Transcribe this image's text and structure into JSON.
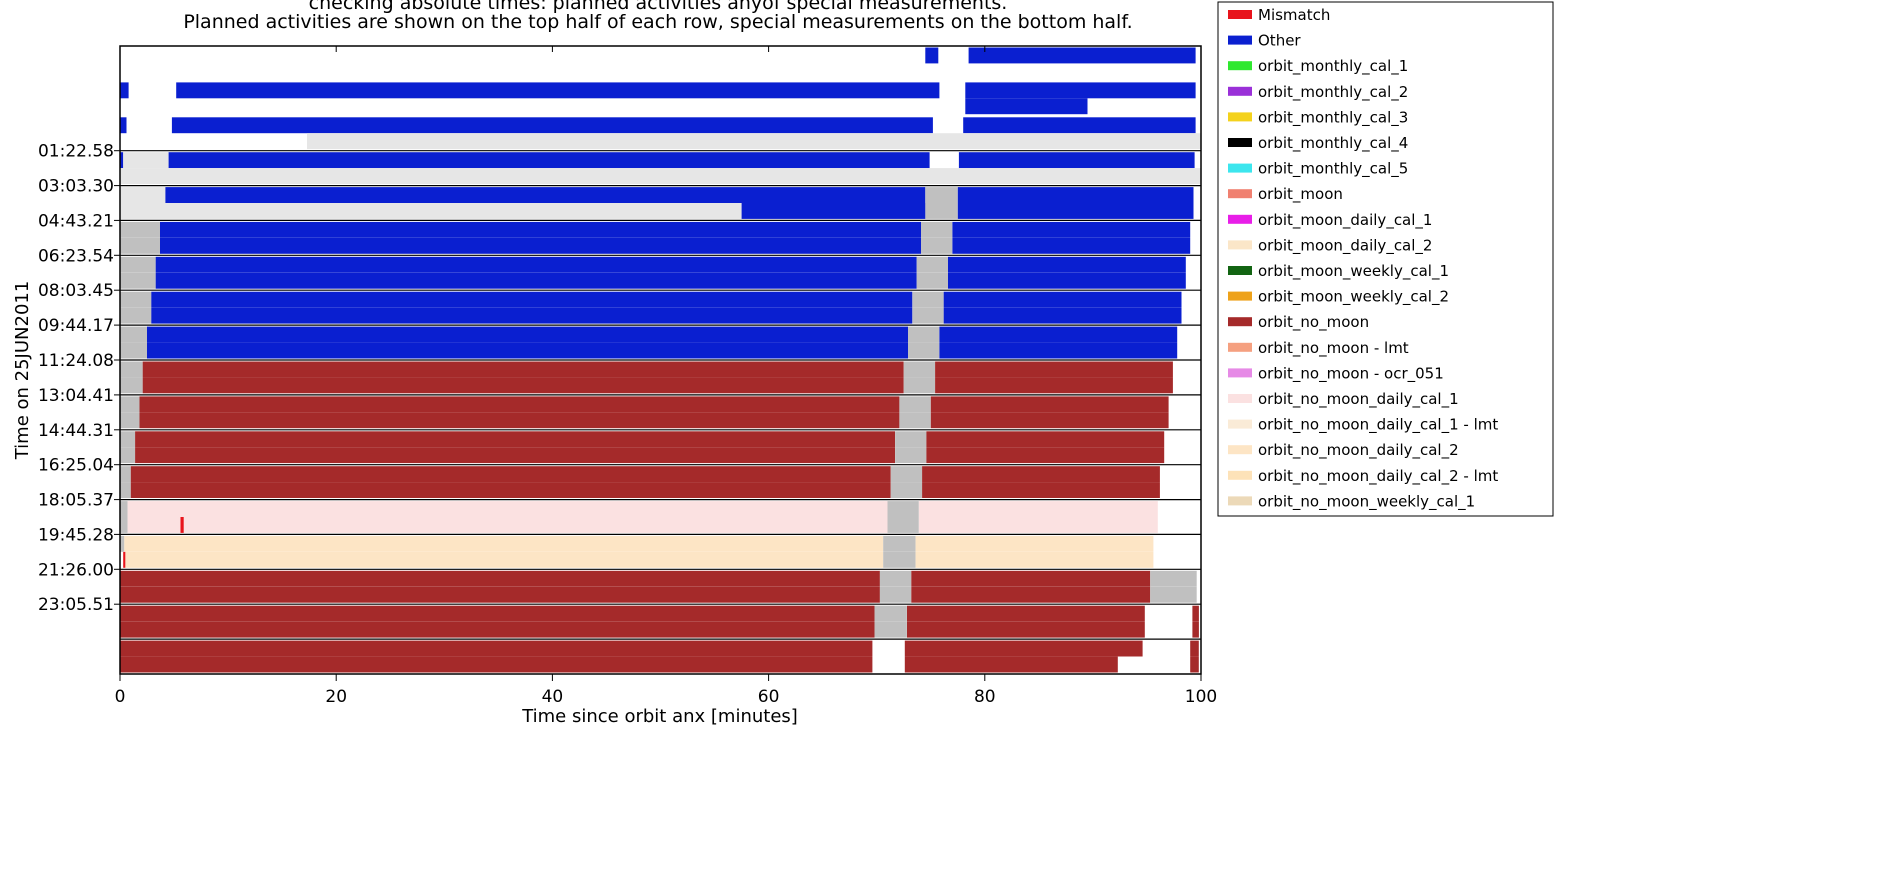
{
  "chart_data": {
    "type": "timeline",
    "subtitle_clipped": "checking absolute times: planned activities anyof special measurements.",
    "subtitle": "Planned activities are shown on the top half of each row, special measurements on the bottom half.",
    "xlabel": "Time since orbit anx [minutes]",
    "ylabel": "Time on 25JUN2011",
    "xlim": [
      0,
      100
    ],
    "x_ticks": [
      0,
      20,
      40,
      60,
      80,
      100
    ],
    "y_tick_labels": [
      "01:22.58",
      "03:03.30",
      "04:43.21",
      "06:23.54",
      "08:03.45",
      "09:44.17",
      "11:24.08",
      "13:04.41",
      "14:44.31",
      "16:25.04",
      "18:05.37",
      "19:45.28",
      "21:26.00",
      "23:05.51"
    ],
    "legend": [
      {
        "label": "Mismatch",
        "color": "#e8141c"
      },
      {
        "label": "Other",
        "color": "#0a1fd0"
      },
      {
        "label": "orbit_monthly_cal_1",
        "color": "#2fe82f"
      },
      {
        "label": "orbit_monthly_cal_2",
        "color": "#9a30d8"
      },
      {
        "label": "orbit_monthly_cal_3",
        "color": "#f4d21c"
      },
      {
        "label": "orbit_monthly_cal_4",
        "color": "#000000"
      },
      {
        "label": "orbit_monthly_cal_5",
        "color": "#3ce6ee"
      },
      {
        "label": "orbit_moon",
        "color": "#f08070"
      },
      {
        "label": "orbit_moon_daily_cal_1",
        "color": "#e81ee8"
      },
      {
        "label": "orbit_moon_daily_cal_2",
        "color": "#fbe6c8"
      },
      {
        "label": "orbit_moon_weekly_cal_1",
        "color": "#126412"
      },
      {
        "label": "orbit_moon_weekly_cal_2",
        "color": "#eea21a"
      },
      {
        "label": "orbit_no_moon",
        "color": "#a52a2a"
      },
      {
        "label": "orbit_no_moon - lmt",
        "color": "#f5a080"
      },
      {
        "label": "orbit_no_moon - ocr_051",
        "color": "#e68ae6"
      },
      {
        "label": "orbit_no_moon_daily_cal_1",
        "color": "#fbe1e1"
      },
      {
        "label": "orbit_no_moon_daily_cal_1 - lmt",
        "color": "#faebd7"
      },
      {
        "label": "orbit_no_moon_daily_cal_2",
        "color": "#fde5c5"
      },
      {
        "label": "orbit_no_moon_daily_cal_2 - lmt",
        "color": "#fde2b8"
      },
      {
        "label": "orbit_no_moon_weekly_cal_1",
        "color": "#ecd9b8"
      }
    ],
    "colors": {
      "Other": "#0a1fd0",
      "orbit_no_moon": "#a52a2a",
      "orbit_no_moon_daily_cal_1": "#fbe1e1",
      "orbit_no_moon_daily_cal_2": "#fde5c5",
      "Mismatch": "#e8141c",
      "gap_gray": "#c0c0c0",
      "light_gray": "#e6e6e6"
    },
    "rows": [
      {
        "top": [
          [
            "Other",
            74.5,
            75.7
          ],
          [
            "Other",
            78.5,
            99.5
          ]
        ],
        "bottom": []
      },
      {
        "top": [
          [
            "Other",
            0,
            0.8
          ],
          [
            "Other",
            5.2,
            75.8
          ],
          [
            "Other",
            78.2,
            99.5
          ]
        ],
        "bottom": [
          [
            "Other",
            78.2,
            89.5
          ]
        ]
      },
      {
        "top": [
          [
            "Other",
            0,
            0.6
          ],
          [
            "Other",
            4.8,
            75.2
          ],
          [
            "Other",
            78.0,
            99.5
          ]
        ],
        "bottom": [
          [
            "light_gray",
            17.3,
            100
          ]
        ]
      },
      {
        "top": [
          [
            "Other",
            0,
            0.3
          ],
          [
            "light_gray",
            0.3,
            4.5
          ],
          [
            "Other",
            4.5,
            74.9
          ],
          [
            "Other",
            77.6,
            99.4
          ]
        ],
        "bottom": [
          [
            "light_gray",
            0,
            100
          ]
        ]
      },
      {
        "top": [
          [
            "light_gray",
            0,
            4.2
          ],
          [
            "Other",
            4.2,
            74.5
          ],
          [
            "gap_gray",
            74.5,
            77.5
          ],
          [
            "Other",
            77.5,
            99.3
          ]
        ],
        "bottom": [
          [
            "light_gray",
            0,
            57.5
          ],
          [
            "Other",
            57.5,
            74.5
          ],
          [
            "gap_gray",
            74.5,
            77.5
          ],
          [
            "Other",
            77.5,
            99.3
          ]
        ]
      },
      {
        "top": [
          [
            "gap_gray",
            0,
            3.7
          ],
          [
            "Other",
            3.7,
            74.1
          ],
          [
            "gap_gray",
            74.1,
            77.0
          ],
          [
            "Other",
            77.0,
            99.0
          ]
        ],
        "bottom": [
          [
            "gap_gray",
            0,
            3.7
          ],
          [
            "Other",
            3.7,
            74.1
          ],
          [
            "gap_gray",
            74.1,
            77.0
          ],
          [
            "Other",
            77.0,
            99.0
          ]
        ]
      },
      {
        "top": [
          [
            "gap_gray",
            0,
            3.3
          ],
          [
            "Other",
            3.3,
            73.7
          ],
          [
            "gap_gray",
            73.7,
            76.6
          ],
          [
            "Other",
            76.6,
            98.6
          ]
        ],
        "bottom": [
          [
            "gap_gray",
            0,
            3.3
          ],
          [
            "Other",
            3.3,
            73.7
          ],
          [
            "gap_gray",
            73.7,
            76.6
          ],
          [
            "Other",
            76.6,
            98.6
          ]
        ]
      },
      {
        "top": [
          [
            "gap_gray",
            0,
            2.9
          ],
          [
            "Other",
            2.9,
            73.3
          ],
          [
            "gap_gray",
            73.3,
            76.2
          ],
          [
            "Other",
            76.2,
            98.2
          ]
        ],
        "bottom": [
          [
            "gap_gray",
            0,
            2.9
          ],
          [
            "Other",
            2.9,
            73.3
          ],
          [
            "gap_gray",
            73.3,
            76.2
          ],
          [
            "Other",
            76.2,
            98.2
          ]
        ]
      },
      {
        "top": [
          [
            "gap_gray",
            0,
            2.5
          ],
          [
            "Other",
            2.5,
            72.9
          ],
          [
            "gap_gray",
            72.9,
            75.8
          ],
          [
            "Other",
            75.8,
            97.8
          ]
        ],
        "bottom": [
          [
            "gap_gray",
            0,
            2.5
          ],
          [
            "Other",
            2.5,
            72.9
          ],
          [
            "gap_gray",
            72.9,
            75.8
          ],
          [
            "Other",
            75.8,
            97.8
          ]
        ]
      },
      {
        "top": [
          [
            "gap_gray",
            0,
            2.1
          ],
          [
            "orbit_no_moon",
            2.1,
            72.5
          ],
          [
            "gap_gray",
            72.5,
            75.4
          ],
          [
            "orbit_no_moon",
            75.4,
            97.4
          ]
        ],
        "bottom": [
          [
            "gap_gray",
            0,
            2.1
          ],
          [
            "orbit_no_moon",
            2.1,
            72.5
          ],
          [
            "gap_gray",
            72.5,
            75.4
          ],
          [
            "orbit_no_moon",
            75.4,
            97.4
          ]
        ]
      },
      {
        "top": [
          [
            "gap_gray",
            0,
            1.8
          ],
          [
            "orbit_no_moon",
            1.8,
            72.1
          ],
          [
            "gap_gray",
            72.1,
            75.0
          ],
          [
            "orbit_no_moon",
            75.0,
            97.0
          ]
        ],
        "bottom": [
          [
            "gap_gray",
            0,
            1.8
          ],
          [
            "orbit_no_moon",
            1.8,
            72.1
          ],
          [
            "gap_gray",
            72.1,
            75.0
          ],
          [
            "orbit_no_moon",
            75.0,
            97.0
          ]
        ]
      },
      {
        "top": [
          [
            "gap_gray",
            0,
            1.4
          ],
          [
            "orbit_no_moon",
            1.4,
            71.7
          ],
          [
            "gap_gray",
            71.7,
            74.6
          ],
          [
            "orbit_no_moon",
            74.6,
            96.6
          ]
        ],
        "bottom": [
          [
            "gap_gray",
            0,
            1.4
          ],
          [
            "orbit_no_moon",
            1.4,
            71.7
          ],
          [
            "gap_gray",
            71.7,
            74.6
          ],
          [
            "orbit_no_moon",
            74.6,
            96.6
          ]
        ]
      },
      {
        "top": [
          [
            "gap_gray",
            0,
            1.0
          ],
          [
            "orbit_no_moon",
            1.0,
            71.3
          ],
          [
            "gap_gray",
            71.3,
            74.2
          ],
          [
            "orbit_no_moon",
            74.2,
            96.2
          ]
        ],
        "bottom": [
          [
            "gap_gray",
            0,
            1.0
          ],
          [
            "orbit_no_moon",
            1.0,
            71.3
          ],
          [
            "gap_gray",
            71.3,
            74.2
          ],
          [
            "orbit_no_moon",
            74.2,
            96.2
          ]
        ]
      },
      {
        "top": [
          [
            "gap_gray",
            0,
            0.7
          ],
          [
            "orbit_no_moon_daily_cal_1",
            0.7,
            71.0
          ],
          [
            "gap_gray",
            71.0,
            73.9
          ],
          [
            "orbit_no_moon_daily_cal_1",
            73.9,
            96.0
          ]
        ],
        "bottom": [
          [
            "gap_gray",
            0,
            0.7
          ],
          [
            "orbit_no_moon_daily_cal_1",
            0.7,
            71.0
          ],
          [
            "Mismatch",
            5.6,
            5.9
          ],
          [
            "gap_gray",
            71.0,
            73.9
          ],
          [
            "orbit_no_moon_daily_cal_1",
            73.9,
            96.0
          ]
        ]
      },
      {
        "top": [
          [
            "gap_gray",
            0,
            0.4
          ],
          [
            "orbit_no_moon_daily_cal_2",
            0.4,
            70.6
          ],
          [
            "gap_gray",
            70.6,
            73.6
          ],
          [
            "orbit_no_moon_daily_cal_2",
            73.6,
            95.6
          ]
        ],
        "bottom": [
          [
            "Mismatch",
            0.3,
            0.5
          ],
          [
            "orbit_no_moon_daily_cal_2",
            0.5,
            70.6
          ],
          [
            "gap_gray",
            70.6,
            73.6
          ],
          [
            "orbit_no_moon_daily_cal_2",
            73.6,
            95.6
          ]
        ]
      },
      {
        "top": [
          [
            "orbit_no_moon",
            0,
            70.3
          ],
          [
            "gap_gray",
            70.3,
            73.2
          ],
          [
            "orbit_no_moon",
            73.2,
            95.3
          ],
          [
            "gap_gray",
            95.3,
            99.6
          ]
        ],
        "bottom": [
          [
            "orbit_no_moon",
            0,
            70.3
          ],
          [
            "gap_gray",
            70.3,
            73.2
          ],
          [
            "orbit_no_moon",
            73.2,
            95.3
          ],
          [
            "gap_gray",
            95.3,
            99.6
          ]
        ]
      },
      {
        "top": [
          [
            "orbit_no_moon",
            0,
            69.8
          ],
          [
            "gap_gray",
            69.8,
            72.8
          ],
          [
            "orbit_no_moon",
            72.8,
            94.8
          ],
          [
            "orbit_no_moon",
            99.2,
            99.8
          ]
        ],
        "bottom": [
          [
            "orbit_no_moon",
            0,
            69.8
          ],
          [
            "gap_gray",
            69.8,
            72.8
          ],
          [
            "orbit_no_moon",
            72.8,
            94.8
          ],
          [
            "orbit_no_moon",
            99.2,
            99.8
          ]
        ]
      },
      {
        "top": [
          [
            "orbit_no_moon",
            0,
            69.6
          ],
          [
            "orbit_no_moon",
            72.6,
            94.6
          ],
          [
            "orbit_no_moon",
            99.0,
            99.8
          ]
        ],
        "bottom": [
          [
            "orbit_no_moon",
            0,
            69.6
          ],
          [
            "orbit_no_moon",
            72.6,
            92.3
          ],
          [
            "orbit_no_moon",
            99.0,
            99.8
          ]
        ]
      }
    ]
  }
}
